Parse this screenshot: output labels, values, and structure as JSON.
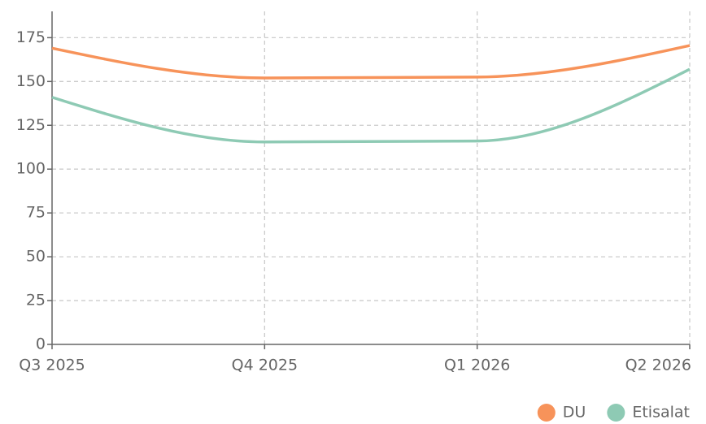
{
  "chart_data": {
    "type": "line",
    "categories": [
      "Q3 2025",
      "Q4 2025",
      "Q1 2026",
      "Q2 2026"
    ],
    "series": [
      {
        "name": "DU",
        "color": "#f7935a",
        "values": [
          169,
          152,
          152.5,
          170.5
        ]
      },
      {
        "name": "Etisalat",
        "color": "#8ecab4",
        "values": [
          141,
          115.5,
          116,
          157
        ]
      }
    ],
    "ylim": [
      0,
      190
    ],
    "yticks": [
      0,
      25,
      50,
      75,
      100,
      125,
      150,
      175
    ],
    "grid": true,
    "legend": "bottom-right"
  }
}
